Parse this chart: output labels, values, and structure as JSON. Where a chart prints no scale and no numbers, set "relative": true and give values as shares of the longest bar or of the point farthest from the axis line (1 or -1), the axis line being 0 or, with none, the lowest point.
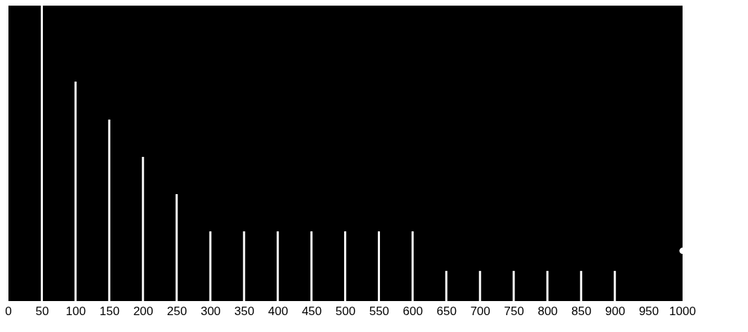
{
  "chart_data": {
    "type": "bar",
    "relative": true,
    "x": [
      50,
      100,
      150,
      200,
      250,
      300,
      350,
      400,
      450,
      500,
      550,
      600,
      650,
      700,
      750,
      800,
      850,
      900
    ],
    "xlim": [
      0,
      1000
    ],
    "xticks": [
      0,
      50,
      100,
      150,
      200,
      250,
      300,
      350,
      400,
      450,
      500,
      550,
      600,
      650,
      700,
      750,
      800,
      850,
      900,
      950,
      1000
    ],
    "series": [
      {
        "color": "#ffffff",
        "values": [
          1,
          0.743,
          0.614,
          0.488,
          0.362,
          0.236,
          0.236,
          0.236,
          0.236,
          0.236,
          0.236,
          0.236,
          0.102,
          0.102,
          0.102,
          0.102,
          0.102,
          0.102
        ]
      },
      {
        "type": "scatter",
        "color": "#ffffff",
        "x": [
          1000
        ],
        "values": [
          0.17
        ]
      }
    ]
  }
}
